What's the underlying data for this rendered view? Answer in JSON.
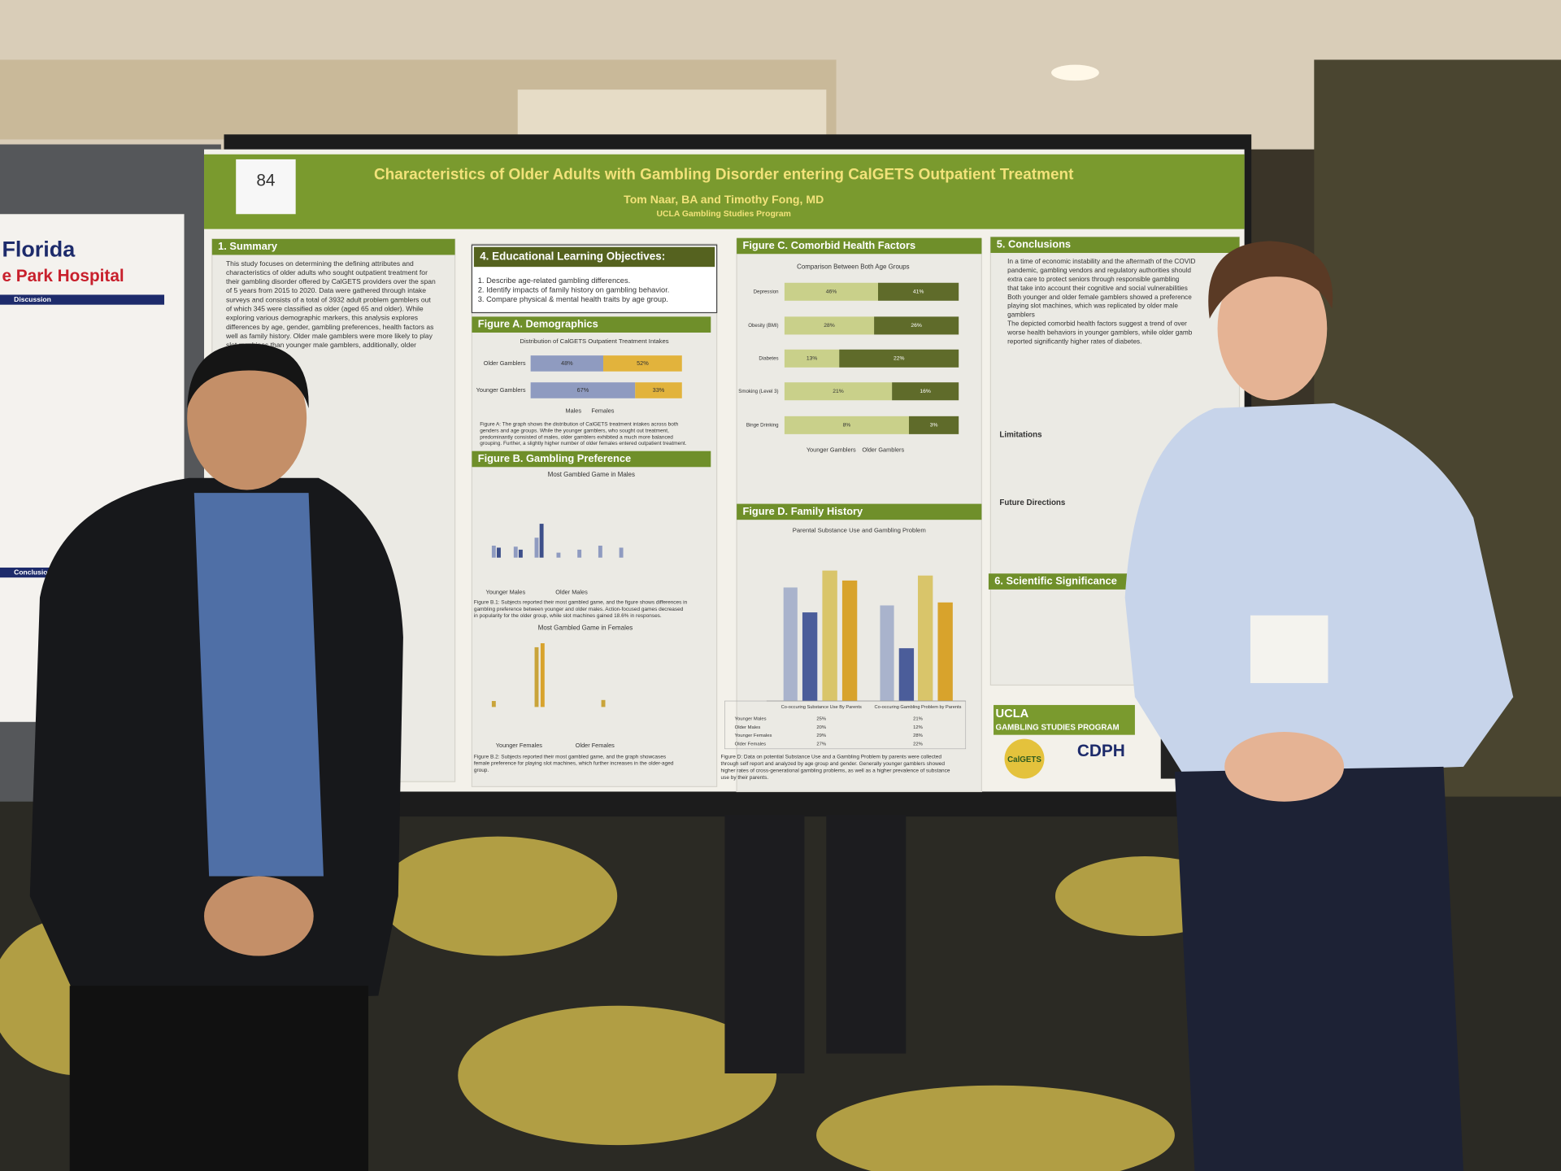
{
  "left_poster": {
    "title": "Florida",
    "subtitle": "e Park Hospital",
    "sections": [
      "Discussion",
      "Conclusion"
    ]
  },
  "poster": {
    "number": "84",
    "title": "Characteristics of Older Adults with Gambling Disorder entering CalGETS Outpatient Treatment",
    "authors": "Tom Naar, BA and Timothy Fong, MD",
    "affiliation": "UCLA Gambling Studies Program",
    "summary": {
      "heading": "1. Summary",
      "lines": [
        "This study focuses on determining the defining attributes and",
        "characteristics of older adults who sought outpatient treatment for",
        "their gambling disorder offered by CalGETS providers over the span",
        "of 5 years from 2015 to 2020. Data were gathered through intake",
        "surveys and consists of a total of 3932 adult problem gamblers out",
        "of which 345 were classified as older (aged 65 and older). While",
        "exploring various demographic markers, this analysis explores",
        "differences by age, gender, gambling preferences, health factors as",
        "well as family history. Older male gamblers were more likely to play",
        "slot machines than younger male gamblers, additionally, older"
      ]
    },
    "objectives": {
      "heading": "4. Educational Learning Objectives:",
      "items": [
        "1.  Describe age-related gambling differences.",
        "2.  Identify impacts of family history on gambling behavior.",
        "3.  Compare physical & mental health traits by age group."
      ]
    },
    "figure_a": {
      "heading": "Figure A. Demographics",
      "chart_title": "Distribution of CalGETS Outpatient Treatment Intakes",
      "rows": [
        {
          "label": "Older Gamblers",
          "males": "48%",
          "females": "52%"
        },
        {
          "label": "Younger Gamblers",
          "males": "67%",
          "females": "33%"
        }
      ],
      "legend": [
        "Males",
        "Females"
      ],
      "caption": [
        "Figure A: The graph shows the distribution of CalGETS treatment intakes across both",
        "genders and age groups. While the younger gamblers, who sought out treatment,",
        "predominantly consisted of males, older gamblers exhibited a much more balanced",
        "grouping. Further, a slightly higher number of older females entered outpatient treatment."
      ]
    },
    "figure_b": {
      "heading": "Figure B.  Gambling Preference",
      "males_title": "Most Gambled Game in Males",
      "males_legend": [
        "Younger Males",
        "Older Males"
      ],
      "males_caption": [
        "Figure B.1: Subjects reported their most gambled game, and the figure shows differences in",
        "gambling preference between younger and older males. Action-focused games decreased",
        "in popularity for the older group, while slot machines gained 18.6% in responses."
      ],
      "females_title": "Most Gambled Game in Females",
      "females_legend": [
        "Younger Females",
        "Older Females"
      ],
      "females_caption": [
        "Figure B.2: Subjects reported their most gambled game, and the graph showcases",
        "female preference for playing slot machines, which further increases in the older-aged",
        "group."
      ]
    },
    "figure_c": {
      "heading": "Figure C. Comorbid Health Factors",
      "chart_title": "Comparison Between Both Age Groups",
      "rows": [
        {
          "label": "Depression",
          "younger": "46%",
          "older": "41%"
        },
        {
          "label": "Obesity (BMI)",
          "younger": "28%",
          "older": "26%"
        },
        {
          "label": "Diabetes",
          "younger": "13%",
          "older": "22%"
        },
        {
          "label": "Smoking (Level 3)",
          "younger": "21%",
          "older": "16%"
        },
        {
          "label": "Binge Drinking",
          "younger": "8%",
          "older": "3%"
        }
      ],
      "legend": [
        "Younger Gamblers",
        "Older Gamblers"
      ]
    },
    "figure_d": {
      "heading": "Figure D. Family History",
      "chart_title": "Parental Substance Use and Gambling Problem",
      "columns": [
        "Co-occuring Substance Use By Parents",
        "Co-occuring Gambling Problem by Parents"
      ],
      "rows": [
        {
          "label": "Younger Males",
          "values": [
            "25%",
            "21%"
          ]
        },
        {
          "label": "Older Males",
          "values": [
            "20%",
            "12%"
          ]
        },
        {
          "label": "Younger Females",
          "values": [
            "29%",
            "28%"
          ]
        },
        {
          "label": "Older Females",
          "values": [
            "27%",
            "22%"
          ]
        }
      ],
      "caption": [
        "Figure D: Data on potential Substance Use and a Gambling Problem by parents were collected",
        "through self report and analyzed by age group and gender. Generally younger gamblers showed",
        "higher rates of cross-generational gambling problems, as well as a higher prevalence of substance",
        "use by their parents."
      ]
    },
    "conclusions": {
      "heading": "5. Conclusions",
      "lines": [
        "In a time of economic instability and the aftermath of the COVID",
        "pandemic, gambling vendors and regulatory authorities should",
        "extra care to protect seniors through responsible gambling",
        "that take into account their cognitive and social vulnerabilities",
        "Both younger and older female gamblers showed a preference",
        "playing slot machines, which was replicated by older male",
        "gamblers",
        "The depicted comorbid health factors suggest a trend of over",
        "worse health behaviors in younger gamblers, while older gamb",
        "reported significantly higher rates of diabetes."
      ],
      "limitations": "Limitations",
      "future": "Future Directions"
    },
    "significance": {
      "heading": "6. Scientific Significance"
    },
    "logos": {
      "ucla": "UCLA",
      "program": "GAMBLING STUDIES PROGRAM",
      "calgets": "CalGETS",
      "cdph": "CDPH"
    }
  }
}
